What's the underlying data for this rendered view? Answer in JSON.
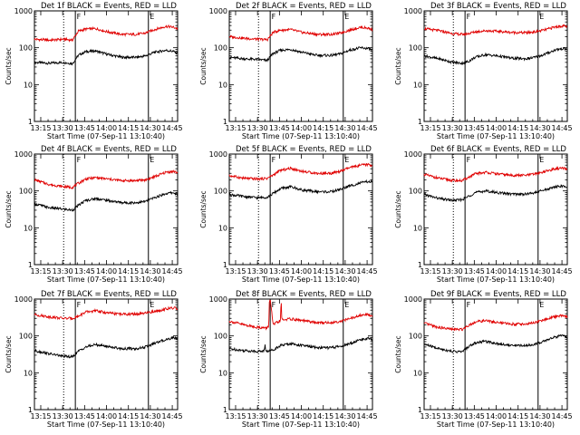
{
  "chart_data": [
    {
      "type": "line",
      "title": "Det 1f BLACK = Events, RED = LLD",
      "xlabel": "Start Time (07-Sep-11 13:10:40)",
      "ylabel": "Counts/sec",
      "x_tick_labels": [
        "13:15",
        "13:30",
        "13:45",
        "14:00",
        "14:15",
        "14:30",
        "14:45"
      ],
      "y_tick_labels": [
        "1",
        "10",
        "100",
        "1000"
      ],
      "y_scale": "log",
      "ylim": [
        1,
        1000
      ],
      "xlim_minutes": [
        0,
        98
      ],
      "markers": [
        {
          "x_min": 20,
          "style": "dotted"
        },
        {
          "x_min": 28,
          "style": "solid",
          "label": "F"
        },
        {
          "x_min": 78,
          "style": "solid",
          "label": "E"
        }
      ],
      "series": [
        {
          "color": "#000000",
          "x_minutes": [
            0,
            10,
            20,
            26,
            30,
            35,
            42,
            50,
            60,
            70,
            76,
            82,
            90,
            95,
            98
          ],
          "values": [
            40,
            38,
            40,
            37,
            62,
            78,
            82,
            66,
            55,
            55,
            60,
            75,
            85,
            80,
            70
          ]
        },
        {
          "color": "#e00000",
          "x_minutes": [
            0,
            10,
            20,
            26,
            30,
            35,
            42,
            50,
            60,
            70,
            76,
            82,
            90,
            95,
            98
          ],
          "values": [
            170,
            160,
            170,
            160,
            280,
            320,
            330,
            270,
            230,
            230,
            250,
            310,
            380,
            360,
            330
          ]
        }
      ]
    },
    {
      "type": "line",
      "title": "Det 2f BLACK = Events, RED = LLD",
      "xlabel": "Start Time (07-Sep-11 13:10:40)",
      "ylabel": "Counts/sec",
      "x_tick_labels": [
        "13:15",
        "13:30",
        "13:45",
        "14:00",
        "14:15",
        "14:30",
        "14:45"
      ],
      "y_tick_labels": [
        "1",
        "10",
        "100",
        "1000"
      ],
      "y_scale": "log",
      "ylim": [
        1,
        1000
      ],
      "xlim_minutes": [
        0,
        98
      ],
      "markers": [
        {
          "x_min": 20,
          "style": "dotted"
        },
        {
          "x_min": 28,
          "style": "solid",
          "label": "F"
        },
        {
          "x_min": 78,
          "style": "solid",
          "label": "E"
        }
      ],
      "series": [
        {
          "color": "#000000",
          "x_minutes": [
            0,
            10,
            20,
            26,
            30,
            35,
            42,
            50,
            60,
            70,
            76,
            82,
            90,
            95,
            98
          ],
          "values": [
            55,
            50,
            48,
            45,
            70,
            85,
            90,
            75,
            62,
            62,
            68,
            85,
            100,
            95,
            85
          ]
        },
        {
          "color": "#e00000",
          "x_minutes": [
            0,
            10,
            20,
            26,
            30,
            35,
            42,
            50,
            60,
            70,
            76,
            82,
            90,
            95,
            98
          ],
          "values": [
            200,
            180,
            170,
            165,
            260,
            300,
            310,
            260,
            230,
            230,
            250,
            300,
            360,
            340,
            310
          ]
        }
      ]
    },
    {
      "type": "line",
      "title": "Det 3f BLACK = Events, RED = LLD",
      "xlabel": "Start Time (07-Sep-11 13:10:40)",
      "ylabel": "Counts/sec",
      "x_tick_labels": [
        "13:15",
        "13:30",
        "13:45",
        "14:00",
        "14:15",
        "14:30",
        "14:45"
      ],
      "y_tick_labels": [
        "1",
        "10",
        "100",
        "1000"
      ],
      "y_scale": "log",
      "ylim": [
        1,
        1000
      ],
      "xlim_minutes": [
        0,
        98
      ],
      "markers": [
        {
          "x_min": 20,
          "style": "dotted"
        },
        {
          "x_min": 28,
          "style": "solid",
          "label": "F"
        },
        {
          "x_min": 78,
          "style": "solid",
          "label": "E"
        }
      ],
      "series": [
        {
          "color": "#000000",
          "x_minutes": [
            0,
            10,
            20,
            26,
            30,
            35,
            42,
            50,
            60,
            70,
            76,
            82,
            90,
            95,
            98
          ],
          "values": [
            60,
            50,
            40,
            38,
            42,
            55,
            65,
            60,
            52,
            50,
            55,
            65,
            88,
            95,
            90
          ]
        },
        {
          "color": "#e00000",
          "x_minutes": [
            0,
            10,
            20,
            26,
            30,
            35,
            42,
            50,
            60,
            70,
            76,
            82,
            90,
            95,
            98
          ],
          "values": [
            330,
            290,
            240,
            230,
            240,
            270,
            290,
            280,
            260,
            255,
            270,
            300,
            370,
            390,
            370
          ]
        }
      ]
    },
    {
      "type": "line",
      "title": "Det 4f BLACK = Events, RED = LLD",
      "xlabel": "Start Time (07-Sep-11 13:10:40)",
      "ylabel": "Counts/sec",
      "x_tick_labels": [
        "13:15",
        "13:30",
        "13:45",
        "14:00",
        "14:15",
        "14:30",
        "14:45"
      ],
      "y_tick_labels": [
        "1",
        "10",
        "100",
        "1000"
      ],
      "y_scale": "log",
      "ylim": [
        1,
        1000
      ],
      "xlim_minutes": [
        0,
        98
      ],
      "markers": [
        {
          "x_min": 20,
          "style": "dotted"
        },
        {
          "x_min": 28,
          "style": "solid",
          "label": "F"
        },
        {
          "x_min": 78,
          "style": "solid",
          "label": "E"
        }
      ],
      "series": [
        {
          "color": "#000000",
          "x_minutes": [
            0,
            10,
            20,
            26,
            30,
            35,
            42,
            50,
            60,
            70,
            76,
            82,
            90,
            95,
            98
          ],
          "values": [
            45,
            35,
            32,
            30,
            40,
            55,
            62,
            55,
            48,
            48,
            52,
            65,
            85,
            90,
            80
          ]
        },
        {
          "color": "#e00000",
          "x_minutes": [
            0,
            10,
            20,
            26,
            30,
            35,
            42,
            50,
            60,
            70,
            76,
            82,
            90,
            95,
            98
          ],
          "values": [
            200,
            150,
            130,
            125,
            160,
            210,
            230,
            210,
            190,
            190,
            200,
            240,
            320,
            340,
            310
          ]
        }
      ]
    },
    {
      "type": "line",
      "title": "Det 5f BLACK = Events, RED = LLD",
      "xlabel": "Start Time (07-Sep-11 13:10:40)",
      "ylabel": "Counts/sec",
      "x_tick_labels": [
        "13:15",
        "13:30",
        "13:45",
        "14:00",
        "14:15",
        "14:30",
        "14:45"
      ],
      "y_tick_labels": [
        "1",
        "10",
        "100",
        "1000"
      ],
      "y_scale": "log",
      "ylim": [
        1,
        1000
      ],
      "xlim_minutes": [
        0,
        98
      ],
      "markers": [
        {
          "x_min": 20,
          "style": "dotted"
        },
        {
          "x_min": 28,
          "style": "solid",
          "label": "F"
        },
        {
          "x_min": 78,
          "style": "solid",
          "label": "E"
        }
      ],
      "series": [
        {
          "color": "#000000",
          "x_minutes": [
            0,
            10,
            20,
            26,
            30,
            35,
            42,
            50,
            60,
            70,
            76,
            82,
            90,
            95,
            98
          ],
          "values": [
            80,
            70,
            65,
            68,
            85,
            115,
            130,
            105,
            95,
            95,
            110,
            135,
            165,
            180,
            170
          ]
        },
        {
          "color": "#e00000",
          "x_minutes": [
            0,
            10,
            20,
            26,
            30,
            35,
            42,
            50,
            60,
            70,
            76,
            82,
            90,
            95,
            98
          ],
          "values": [
            260,
            220,
            210,
            220,
            270,
            360,
            410,
            340,
            300,
            300,
            340,
            420,
            500,
            520,
            490
          ]
        }
      ]
    },
    {
      "type": "line",
      "title": "Det 6f BLACK = Events, RED = LLD",
      "xlabel": "Start Time (07-Sep-11 13:10:40)",
      "ylabel": "Counts/sec",
      "x_tick_labels": [
        "13:15",
        "13:30",
        "13:45",
        "14:00",
        "14:15",
        "14:30",
        "14:45"
      ],
      "y_tick_labels": [
        "1",
        "10",
        "100",
        "1000"
      ],
      "y_scale": "log",
      "ylim": [
        1,
        1000
      ],
      "xlim_minutes": [
        0,
        98
      ],
      "markers": [
        {
          "x_min": 20,
          "style": "dotted"
        },
        {
          "x_min": 28,
          "style": "solid",
          "label": "F"
        },
        {
          "x_min": 78,
          "style": "solid",
          "label": "E"
        }
      ],
      "series": [
        {
          "color": "#000000",
          "x_minutes": [
            0,
            10,
            20,
            26,
            30,
            35,
            42,
            50,
            60,
            70,
            76,
            82,
            90,
            95,
            98
          ],
          "values": [
            80,
            62,
            55,
            58,
            70,
            90,
            100,
            90,
            82,
            82,
            90,
            105,
            130,
            135,
            125
          ]
        },
        {
          "color": "#e00000",
          "x_minutes": [
            0,
            10,
            20,
            26,
            30,
            35,
            42,
            50,
            60,
            70,
            76,
            82,
            90,
            95,
            98
          ],
          "values": [
            280,
            220,
            190,
            190,
            230,
            290,
            320,
            290,
            265,
            265,
            290,
            330,
            400,
            410,
            380
          ]
        }
      ]
    },
    {
      "type": "line",
      "title": "Det 7f BLACK = Events, RED = LLD",
      "xlabel": "Start Time (07-Sep-11 13:10:40)",
      "ylabel": "Counts/sec",
      "x_tick_labels": [
        "13:15",
        "13:30",
        "13:45",
        "14:00",
        "14:15",
        "14:30",
        "14:45"
      ],
      "y_tick_labels": [
        "1",
        "10",
        "100",
        "1000"
      ],
      "y_scale": "log",
      "ylim": [
        1,
        1000
      ],
      "xlim_minutes": [
        0,
        98
      ],
      "markers": [
        {
          "x_min": 20,
          "style": "dotted"
        },
        {
          "x_min": 28,
          "style": "solid",
          "label": "F"
        },
        {
          "x_min": 78,
          "style": "solid",
          "label": "E"
        }
      ],
      "series": [
        {
          "color": "#000000",
          "x_minutes": [
            0,
            10,
            20,
            26,
            30,
            35,
            42,
            50,
            60,
            70,
            76,
            82,
            90,
            95,
            98
          ],
          "values": [
            40,
            33,
            28,
            27,
            38,
            50,
            58,
            52,
            45,
            45,
            50,
            62,
            80,
            90,
            85
          ]
        },
        {
          "color": "#e00000",
          "x_minutes": [
            0,
            10,
            20,
            26,
            30,
            35,
            42,
            50,
            60,
            70,
            76,
            82,
            90,
            95,
            98
          ],
          "values": [
            380,
            330,
            300,
            300,
            340,
            440,
            480,
            420,
            390,
            390,
            410,
            460,
            540,
            570,
            560
          ]
        }
      ]
    },
    {
      "type": "line",
      "title": "Det 8f BLACK = Events, RED = LLD",
      "xlabel": "Start Time (07-Sep-11 13:10:40)",
      "ylabel": "Counts/sec",
      "x_tick_labels": [
        "13:15",
        "13:30",
        "13:45",
        "14:00",
        "14:15",
        "14:30",
        "14:45"
      ],
      "y_tick_labels": [
        "1",
        "10",
        "100",
        "1000"
      ],
      "y_scale": "log",
      "ylim": [
        1,
        1000
      ],
      "xlim_minutes": [
        0,
        98
      ],
      "markers": [
        {
          "x_min": 20,
          "style": "dotted"
        },
        {
          "x_min": 28,
          "style": "solid",
          "label": "F"
        },
        {
          "x_min": 78,
          "style": "solid",
          "label": "E"
        }
      ],
      "series": [
        {
          "color": "#000000",
          "x_minutes": [
            0,
            10,
            20,
            24,
            24.5,
            25,
            26,
            30,
            35,
            42,
            50,
            60,
            70,
            76,
            82,
            90,
            95,
            98
          ],
          "values": [
            45,
            40,
            38,
            40,
            55,
            40,
            38,
            42,
            55,
            62,
            55,
            48,
            48,
            52,
            60,
            80,
            85,
            78
          ]
        },
        {
          "color": "#e00000",
          "x_minutes": [
            0,
            10,
            20,
            24,
            25,
            26,
            27,
            27.5,
            28,
            30,
            35,
            35.5,
            36,
            42,
            50,
            60,
            70,
            76,
            82,
            90,
            95,
            98
          ],
          "values": [
            250,
            200,
            170,
            165,
            160,
            170,
            180,
            1000,
            1000,
            200,
            260,
            1000,
            270,
            290,
            260,
            230,
            230,
            250,
            290,
            360,
            380,
            350
          ]
        }
      ]
    },
    {
      "type": "line",
      "title": "Det 9f BLACK = Events, RED = LLD",
      "xlabel": "Start Time (07-Sep-11 13:10:40)",
      "ylabel": "Counts/sec",
      "x_tick_labels": [
        "13:15",
        "13:30",
        "13:45",
        "14:00",
        "14:15",
        "14:30",
        "14:45"
      ],
      "y_tick_labels": [
        "1",
        "10",
        "100",
        "1000"
      ],
      "y_scale": "log",
      "ylim": [
        1,
        1000
      ],
      "xlim_minutes": [
        0,
        98
      ],
      "markers": [
        {
          "x_min": 20,
          "style": "dotted"
        },
        {
          "x_min": 28,
          "style": "solid",
          "label": "F"
        },
        {
          "x_min": 78,
          "style": "solid",
          "label": "E"
        }
      ],
      "series": [
        {
          "color": "#000000",
          "x_minutes": [
            0,
            10,
            20,
            26,
            30,
            35,
            42,
            50,
            60,
            70,
            76,
            82,
            90,
            95,
            98
          ],
          "values": [
            60,
            45,
            38,
            37,
            50,
            65,
            72,
            62,
            55,
            55,
            60,
            72,
            95,
            100,
            92
          ]
        },
        {
          "color": "#e00000",
          "x_minutes": [
            0,
            10,
            20,
            26,
            30,
            35,
            42,
            50,
            60,
            70,
            76,
            82,
            90,
            95,
            98
          ],
          "values": [
            220,
            170,
            150,
            150,
            190,
            240,
            260,
            230,
            210,
            210,
            230,
            270,
            340,
            360,
            330
          ]
        }
      ]
    }
  ]
}
